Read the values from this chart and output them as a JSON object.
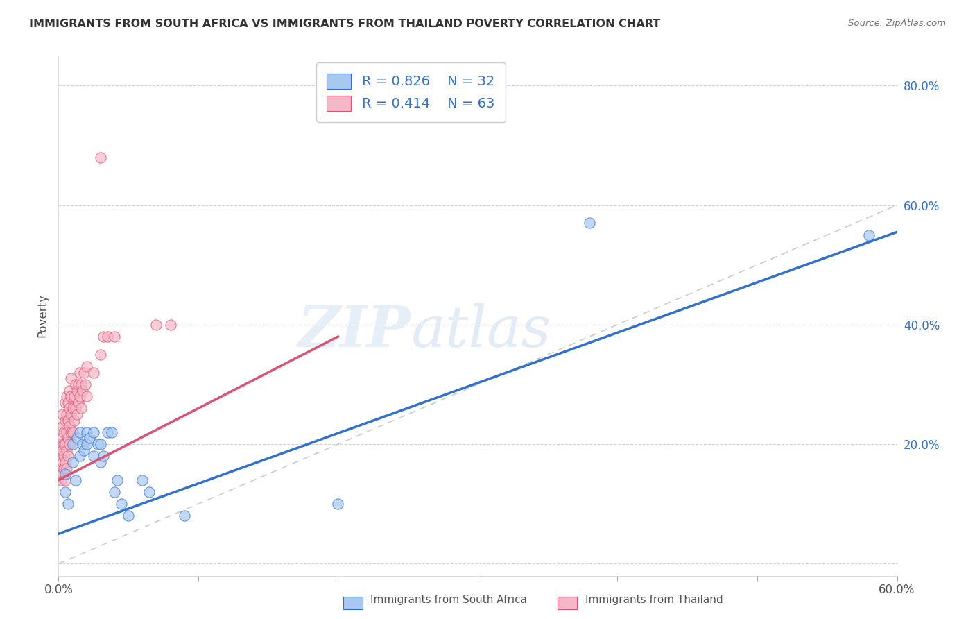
{
  "title": "IMMIGRANTS FROM SOUTH AFRICA VS IMMIGRANTS FROM THAILAND POVERTY CORRELATION CHART",
  "source": "Source: ZipAtlas.com",
  "ylabel": "Poverty",
  "xlim": [
    0.0,
    0.6
  ],
  "ylim": [
    -0.02,
    0.85
  ],
  "yticks": [
    0.0,
    0.2,
    0.4,
    0.6,
    0.8
  ],
  "ytick_labels": [
    "",
    "20.0%",
    "40.0%",
    "60.0%",
    "80.0%"
  ],
  "xticks": [
    0.0,
    0.1,
    0.2,
    0.3,
    0.4,
    0.5,
    0.6
  ],
  "xtick_labels": [
    "0.0%",
    "",
    "",
    "",
    "",
    "",
    "60.0%"
  ],
  "south_africa_color": "#a8c8f0",
  "thailand_color": "#f5b8c8",
  "south_africa_line_color": "#3070d0",
  "thailand_line_color": "#e05070",
  "diagonal_color": "#cccccc",
  "R_south_africa": 0.826,
  "N_south_africa": 32,
  "R_thailand": 0.414,
  "N_thailand": 63,
  "legend_label_south_africa": "Immigrants from South Africa",
  "legend_label_thailand": "Immigrants from Thailand",
  "watermark_zip": "ZIP",
  "watermark_atlas": "atlas",
  "background_color": "#ffffff",
  "south_africa_scatter": [
    [
      0.005,
      0.12
    ],
    [
      0.005,
      0.15
    ],
    [
      0.007,
      0.1
    ],
    [
      0.01,
      0.17
    ],
    [
      0.01,
      0.2
    ],
    [
      0.012,
      0.14
    ],
    [
      0.013,
      0.21
    ],
    [
      0.015,
      0.22
    ],
    [
      0.015,
      0.18
    ],
    [
      0.017,
      0.2
    ],
    [
      0.018,
      0.19
    ],
    [
      0.02,
      0.22
    ],
    [
      0.02,
      0.2
    ],
    [
      0.022,
      0.21
    ],
    [
      0.025,
      0.18
    ],
    [
      0.025,
      0.22
    ],
    [
      0.028,
      0.2
    ],
    [
      0.03,
      0.2
    ],
    [
      0.03,
      0.17
    ],
    [
      0.032,
      0.18
    ],
    [
      0.035,
      0.22
    ],
    [
      0.038,
      0.22
    ],
    [
      0.04,
      0.12
    ],
    [
      0.042,
      0.14
    ],
    [
      0.045,
      0.1
    ],
    [
      0.05,
      0.08
    ],
    [
      0.06,
      0.14
    ],
    [
      0.065,
      0.12
    ],
    [
      0.09,
      0.08
    ],
    [
      0.2,
      0.1
    ],
    [
      0.38,
      0.57
    ],
    [
      0.58,
      0.55
    ]
  ],
  "thailand_scatter": [
    [
      0.002,
      0.14
    ],
    [
      0.002,
      0.16
    ],
    [
      0.002,
      0.18
    ],
    [
      0.002,
      0.2
    ],
    [
      0.003,
      0.15
    ],
    [
      0.003,
      0.17
    ],
    [
      0.003,
      0.19
    ],
    [
      0.003,
      0.21
    ],
    [
      0.003,
      0.23
    ],
    [
      0.003,
      0.25
    ],
    [
      0.004,
      0.16
    ],
    [
      0.004,
      0.18
    ],
    [
      0.004,
      0.2
    ],
    [
      0.004,
      0.22
    ],
    [
      0.005,
      0.14
    ],
    [
      0.005,
      0.17
    ],
    [
      0.005,
      0.2
    ],
    [
      0.005,
      0.24
    ],
    [
      0.005,
      0.27
    ],
    [
      0.006,
      0.16
    ],
    [
      0.006,
      0.19
    ],
    [
      0.006,
      0.22
    ],
    [
      0.006,
      0.25
    ],
    [
      0.006,
      0.28
    ],
    [
      0.007,
      0.18
    ],
    [
      0.007,
      0.21
    ],
    [
      0.007,
      0.24
    ],
    [
      0.007,
      0.27
    ],
    [
      0.008,
      0.2
    ],
    [
      0.008,
      0.23
    ],
    [
      0.008,
      0.26
    ],
    [
      0.008,
      0.29
    ],
    [
      0.009,
      0.22
    ],
    [
      0.009,
      0.25
    ],
    [
      0.009,
      0.28
    ],
    [
      0.009,
      0.31
    ],
    [
      0.01,
      0.22
    ],
    [
      0.01,
      0.26
    ],
    [
      0.011,
      0.24
    ],
    [
      0.011,
      0.28
    ],
    [
      0.012,
      0.26
    ],
    [
      0.012,
      0.3
    ],
    [
      0.013,
      0.25
    ],
    [
      0.013,
      0.29
    ],
    [
      0.014,
      0.27
    ],
    [
      0.014,
      0.3
    ],
    [
      0.015,
      0.28
    ],
    [
      0.015,
      0.32
    ],
    [
      0.016,
      0.26
    ],
    [
      0.016,
      0.3
    ],
    [
      0.017,
      0.29
    ],
    [
      0.018,
      0.32
    ],
    [
      0.019,
      0.3
    ],
    [
      0.02,
      0.28
    ],
    [
      0.02,
      0.33
    ],
    [
      0.025,
      0.32
    ],
    [
      0.03,
      0.35
    ],
    [
      0.032,
      0.38
    ],
    [
      0.035,
      0.38
    ],
    [
      0.04,
      0.38
    ],
    [
      0.07,
      0.4
    ],
    [
      0.08,
      0.4
    ],
    [
      0.03,
      0.68
    ]
  ]
}
